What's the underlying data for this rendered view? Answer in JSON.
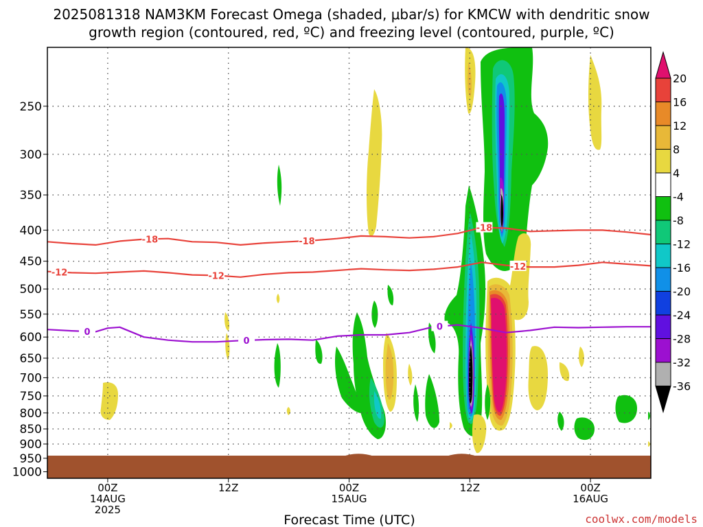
{
  "title": {
    "line1": "2025081318 NAM3KM Forecast Omega (shaded, μbar/s) for KMCW with dendritic snow",
    "line2": "growth region (contoured, red, ºC) and freezing level (contoured, purple, ºC)"
  },
  "credit": "coolwx.com/models",
  "colors": {
    "ground": "#a0522d",
    "temp_contour": "#e8423a",
    "freezing_contour": "#9c10d0",
    "grid": "#555555"
  },
  "chart_data": {
    "type": "heatmap",
    "title": "2025081318 NAM3KM Forecast Omega (shaded, μbar/s) for KMCW with dendritic snow growth region (contoured, red, ºC) and freezing level (contoured, purple, ºC)",
    "xlabel": "Forecast Time (UTC)",
    "ylabel": "",
    "x_range_hours": [
      -5,
      45
    ],
    "y_range_hPa": [
      200,
      1025
    ],
    "y_scale": "log-pressure",
    "grid": true,
    "y_ticks": [
      250,
      300,
      350,
      400,
      450,
      500,
      550,
      600,
      650,
      700,
      750,
      800,
      850,
      900,
      950,
      1000
    ],
    "x_ticks": [
      {
        "hour": 0,
        "lines": [
          "00Z",
          "14AUG",
          "2025"
        ]
      },
      {
        "hour": 10,
        "lines": [
          "12Z"
        ]
      },
      {
        "hour": 20,
        "lines": [
          "00Z",
          "15AUG"
        ]
      },
      {
        "hour": 30,
        "lines": [
          "12Z"
        ]
      },
      {
        "hour": 40,
        "lines": [
          "00Z",
          "16AUG"
        ]
      }
    ],
    "colorbar": {
      "labels": [
        "20",
        "16",
        "12",
        "8",
        "4",
        "-4",
        "-8",
        "-12",
        "-16",
        "-20",
        "-24",
        "-28",
        "-32",
        "-36"
      ],
      "colors": [
        "#e0106e",
        "#e8423a",
        "#e88a28",
        "#e8b838",
        "#e8d840",
        "#ffffff",
        "#10c010",
        "#10c878",
        "#10c8c8",
        "#1090e8",
        "#1040e0",
        "#6010e0",
        "#9c10d0",
        "#b0b0b0",
        "#000000"
      ]
    },
    "contours": {
      "minus18": {
        "label": "-18",
        "hours": [
          -5,
          -3,
          -1,
          1,
          3,
          5,
          7,
          9,
          11,
          13,
          15,
          17,
          19,
          21,
          23,
          25,
          27,
          29,
          31,
          33,
          35,
          37,
          39,
          41,
          43,
          45
        ],
        "pressure": [
          418,
          421,
          423,
          417,
          414,
          413,
          418,
          419,
          423,
          420,
          418,
          416,
          413,
          409,
          410,
          412,
          410,
          405,
          396,
          397,
          402,
          401,
          400,
          400,
          403,
          407
        ]
      },
      "minus12": {
        "label": "-12",
        "hours": [
          -5,
          -3,
          -1,
          1,
          3,
          5,
          7,
          9,
          11,
          13,
          15,
          17,
          19,
          21,
          23,
          25,
          27,
          29,
          31,
          33,
          35,
          37,
          39,
          41,
          43,
          45
        ],
        "pressure": [
          468,
          470,
          471,
          469,
          467,
          470,
          474,
          475,
          478,
          473,
          470,
          469,
          466,
          463,
          465,
          466,
          464,
          460,
          452,
          457,
          460,
          460,
          457,
          452,
          455,
          458
        ]
      },
      "zero": {
        "label": "0",
        "hours": [
          -5,
          -3,
          -1,
          0,
          1,
          3,
          5,
          7,
          9,
          11,
          13,
          15,
          17,
          19,
          21,
          23,
          25,
          27,
          29,
          31,
          33,
          35,
          37,
          39,
          41,
          43,
          45
        ],
        "pressure": [
          583,
          586,
          588,
          580,
          578,
          600,
          607,
          611,
          611,
          608,
          606,
          605,
          607,
          598,
          595,
          595,
          590,
          577,
          573,
          580,
          590,
          585,
          578,
          579,
          578,
          577,
          577
        ]
      }
    },
    "omega_features": [
      {
        "hour": 30,
        "pressure": 720,
        "value": -36,
        "color": "#000000"
      },
      {
        "hour": 32.6,
        "pressure": 380,
        "value": -36,
        "color": "#000000"
      },
      {
        "hour": 32.8,
        "pressure": 700,
        "value": 20,
        "color": "#e0106e"
      },
      {
        "hour": 42,
        "pressure": 250,
        "value": 4,
        "color": "#e8d840"
      }
    ]
  }
}
